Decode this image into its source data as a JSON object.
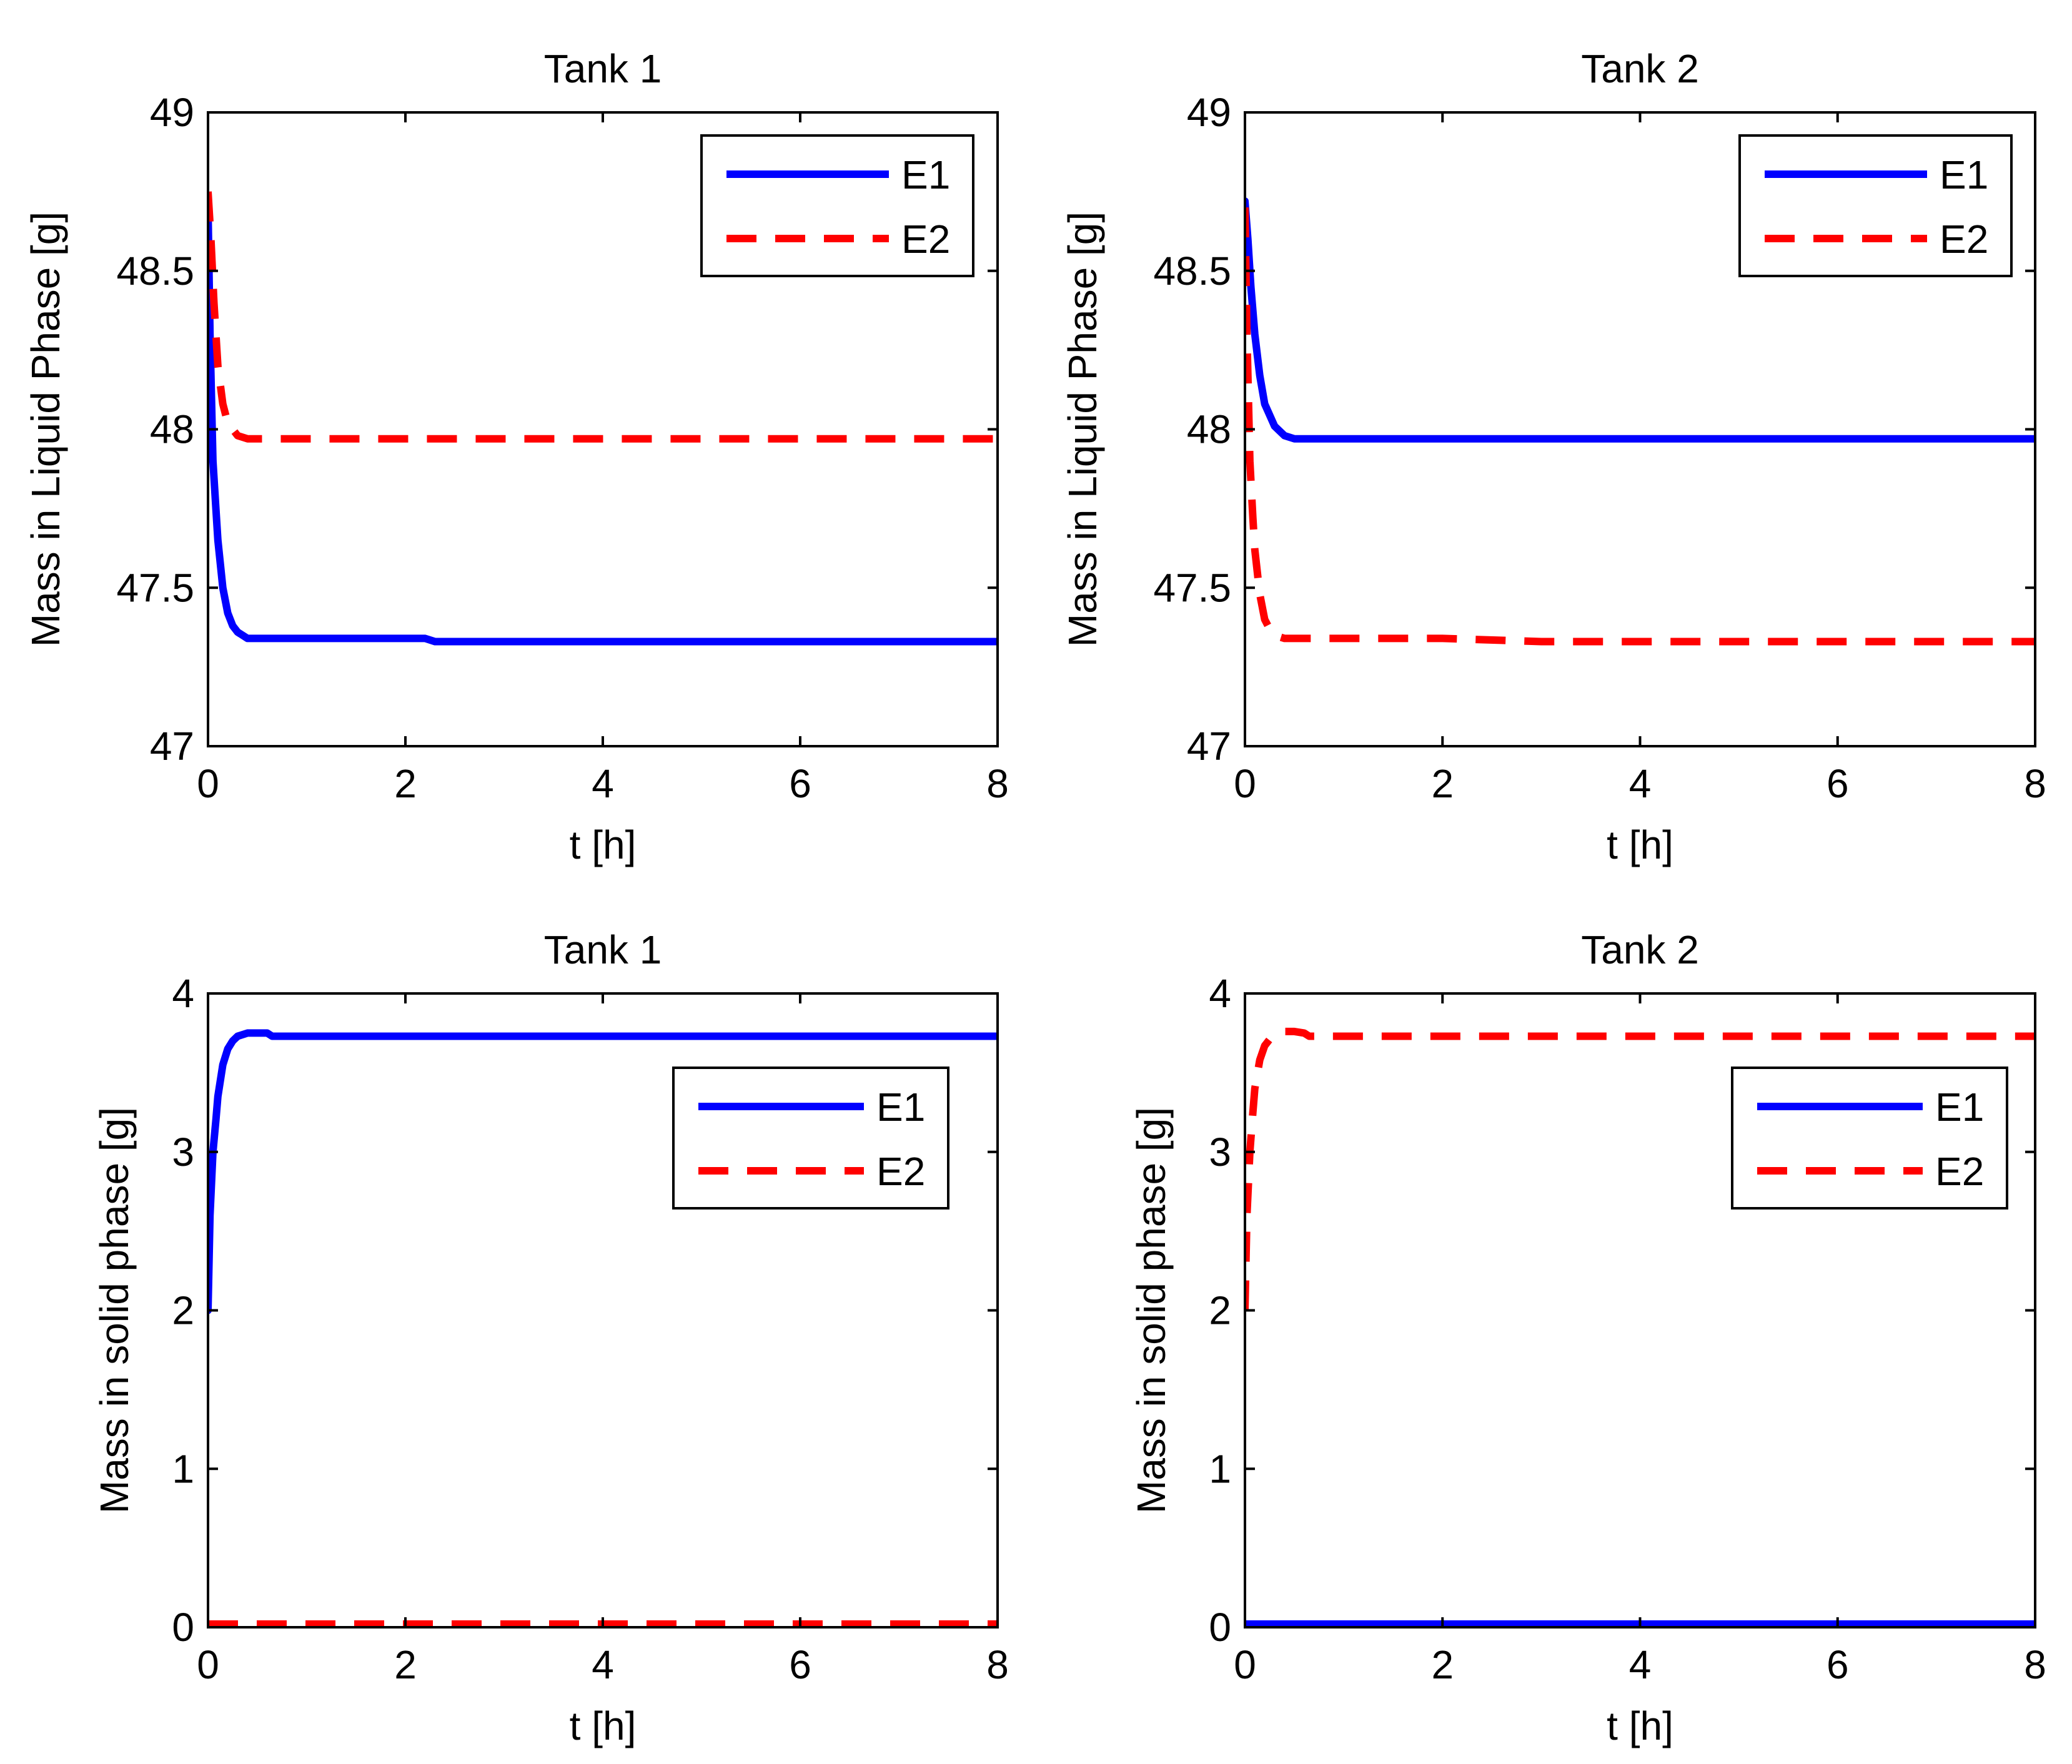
{
  "colors": {
    "E1": "#0000ff",
    "E2": "#ff0000",
    "axis": "#000000"
  },
  "chart_data": [
    {
      "type": "line",
      "title": "Tank 1",
      "xlabel": "t [h]",
      "ylabel": "Mass in Liquid Phase [g]",
      "xlim": [
        0,
        8
      ],
      "ylim": [
        47,
        49
      ],
      "xticks": [
        0,
        2,
        4,
        6,
        8
      ],
      "yticks": [
        47,
        47.5,
        48,
        48.5,
        49
      ],
      "legend": "top-right",
      "series": [
        {
          "name": "E1",
          "style": "solid",
          "x": [
            0,
            0.02,
            0.05,
            0.08,
            0.1,
            0.15,
            0.2,
            0.25,
            0.3,
            0.4,
            0.5,
            1,
            2,
            2.2,
            2.3,
            3,
            4,
            5,
            6,
            7,
            8
          ],
          "y": [
            48.7,
            48.3,
            47.9,
            47.75,
            47.65,
            47.5,
            47.42,
            47.38,
            47.36,
            47.34,
            47.34,
            47.34,
            47.34,
            47.34,
            47.33,
            47.33,
            47.33,
            47.33,
            47.33,
            47.33,
            47.33
          ]
        },
        {
          "name": "E2",
          "style": "dashed",
          "x": [
            0,
            0.03,
            0.06,
            0.1,
            0.15,
            0.2,
            0.3,
            0.4,
            0.5,
            1,
            2,
            3,
            4,
            5,
            6,
            7,
            8
          ],
          "y": [
            48.75,
            48.6,
            48.4,
            48.2,
            48.08,
            48.02,
            47.98,
            47.97,
            47.97,
            47.97,
            47.97,
            47.97,
            47.97,
            47.97,
            47.97,
            47.97,
            47.97
          ]
        }
      ]
    },
    {
      "type": "line",
      "title": "Tank 2",
      "xlabel": "t [h]",
      "ylabel": "Mass in Liquid Phase [g]",
      "xlim": [
        0,
        8
      ],
      "ylim": [
        47,
        49
      ],
      "xticks": [
        0,
        2,
        4,
        6,
        8
      ],
      "yticks": [
        47,
        47.5,
        48,
        48.5,
        49
      ],
      "legend": "top-right",
      "series": [
        {
          "name": "E1",
          "style": "solid",
          "x": [
            0,
            0.03,
            0.06,
            0.1,
            0.15,
            0.2,
            0.3,
            0.4,
            0.5,
            1,
            2,
            3,
            4,
            5,
            6,
            7,
            8
          ],
          "y": [
            48.72,
            48.6,
            48.45,
            48.3,
            48.17,
            48.08,
            48.01,
            47.98,
            47.97,
            47.97,
            47.97,
            47.97,
            47.97,
            47.97,
            47.97,
            47.97,
            47.97
          ]
        },
        {
          "name": "E2",
          "style": "dashed",
          "x": [
            0,
            0.02,
            0.05,
            0.08,
            0.1,
            0.15,
            0.2,
            0.25,
            0.3,
            0.4,
            0.5,
            1,
            2,
            3,
            4,
            5,
            6,
            7,
            8
          ],
          "y": [
            48.7,
            48.3,
            47.9,
            47.72,
            47.62,
            47.48,
            47.4,
            47.37,
            47.35,
            47.34,
            47.34,
            47.34,
            47.34,
            47.33,
            47.33,
            47.33,
            47.33,
            47.33,
            47.33
          ]
        }
      ]
    },
    {
      "type": "line",
      "title": "Tank 1",
      "xlabel": "t [h]",
      "ylabel": "Mass in solid phase [g]",
      "xlim": [
        0,
        8
      ],
      "ylim": [
        0,
        4
      ],
      "xticks": [
        0,
        2,
        4,
        6,
        8
      ],
      "yticks": [
        0,
        1,
        2,
        3,
        4
      ],
      "legend": "upper-right",
      "series": [
        {
          "name": "E1",
          "style": "solid",
          "x": [
            0,
            0.02,
            0.05,
            0.08,
            0.1,
            0.15,
            0.2,
            0.25,
            0.3,
            0.4,
            0.5,
            0.6,
            0.65,
            0.7,
            1,
            2,
            4,
            6,
            8
          ],
          "y": [
            2.0,
            2.6,
            3.0,
            3.2,
            3.35,
            3.55,
            3.65,
            3.7,
            3.73,
            3.75,
            3.75,
            3.75,
            3.73,
            3.73,
            3.73,
            3.73,
            3.73,
            3.73,
            3.73
          ]
        },
        {
          "name": "E2",
          "style": "dashed",
          "x": [
            0,
            1,
            2,
            3,
            4,
            5,
            6,
            7,
            8
          ],
          "y": [
            0.02,
            0.02,
            0.02,
            0.02,
            0.02,
            0.02,
            0.02,
            0.02,
            0.02
          ]
        }
      ]
    },
    {
      "type": "line",
      "title": "Tank 2",
      "xlabel": "t [h]",
      "ylabel": "Mass in solid phase [g]",
      "xlim": [
        0,
        8
      ],
      "ylim": [
        0,
        4
      ],
      "xticks": [
        0,
        2,
        4,
        6,
        8
      ],
      "yticks": [
        0,
        1,
        2,
        3,
        4
      ],
      "legend": "upper-right",
      "series": [
        {
          "name": "E1",
          "style": "solid",
          "x": [
            0,
            1,
            2,
            3,
            4,
            5,
            6,
            7,
            8
          ],
          "y": [
            0.02,
            0.02,
            0.02,
            0.02,
            0.02,
            0.02,
            0.02,
            0.02,
            0.02
          ]
        },
        {
          "name": "E2",
          "style": "dashed",
          "x": [
            0,
            0.02,
            0.05,
            0.08,
            0.1,
            0.15,
            0.2,
            0.25,
            0.3,
            0.4,
            0.5,
            0.6,
            0.65,
            0.7,
            1,
            2,
            4,
            6,
            8
          ],
          "y": [
            2.0,
            2.6,
            3.0,
            3.25,
            3.4,
            3.58,
            3.67,
            3.71,
            3.74,
            3.76,
            3.76,
            3.75,
            3.73,
            3.73,
            3.73,
            3.73,
            3.73,
            3.73,
            3.73
          ]
        }
      ]
    }
  ]
}
